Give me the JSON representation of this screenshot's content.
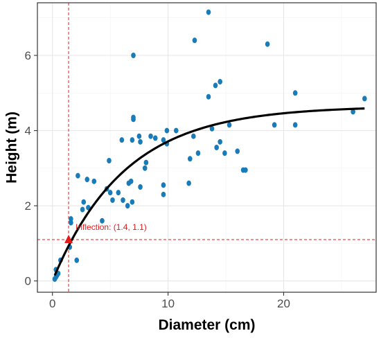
{
  "chart_data": {
    "type": "scatter",
    "xlabel": "Diameter (cm)",
    "ylabel": "Height (m)",
    "xlim": [
      -1.3,
      28.0
    ],
    "ylim": [
      -0.3,
      7.4
    ],
    "x_ticks": [
      0,
      10,
      20
    ],
    "y_ticks": [
      0,
      2,
      4,
      6
    ],
    "grid": true,
    "legend": "none",
    "colors": {
      "points": "#1a7bb9",
      "fit_line": "#000000",
      "inflection": "#e41a1c",
      "grid_major": "#e6e6e6",
      "grid_minor": "#f2f2f2"
    },
    "points": [
      {
        "x": 0.2,
        "y": 0.05
      },
      {
        "x": 0.3,
        "y": 0.1
      },
      {
        "x": 0.4,
        "y": 0.15
      },
      {
        "x": 0.3,
        "y": 0.3
      },
      {
        "x": 0.5,
        "y": 0.2
      },
      {
        "x": 0.7,
        "y": 0.55
      },
      {
        "x": 1.5,
        "y": 0.9
      },
      {
        "x": 1.6,
        "y": 1.55
      },
      {
        "x": 1.6,
        "y": 1.65
      },
      {
        "x": 2.1,
        "y": 0.55
      },
      {
        "x": 2.2,
        "y": 2.8
      },
      {
        "x": 2.6,
        "y": 1.9
      },
      {
        "x": 2.7,
        "y": 2.1
      },
      {
        "x": 3.0,
        "y": 2.7
      },
      {
        "x": 3.1,
        "y": 1.95
      },
      {
        "x": 3.6,
        "y": 2.65
      },
      {
        "x": 4.3,
        "y": 1.6
      },
      {
        "x": 4.7,
        "y": 2.45
      },
      {
        "x": 4.9,
        "y": 3.2
      },
      {
        "x": 5.0,
        "y": 2.35
      },
      {
        "x": 5.2,
        "y": 2.15
      },
      {
        "x": 5.7,
        "y": 2.35
      },
      {
        "x": 6.0,
        "y": 3.75
      },
      {
        "x": 6.1,
        "y": 2.15
      },
      {
        "x": 6.5,
        "y": 2.0
      },
      {
        "x": 6.6,
        "y": 2.6
      },
      {
        "x": 6.8,
        "y": 2.65
      },
      {
        "x": 6.9,
        "y": 3.75
      },
      {
        "x": 6.9,
        "y": 2.1
      },
      {
        "x": 7.0,
        "y": 4.3
      },
      {
        "x": 7.0,
        "y": 4.35
      },
      {
        "x": 7.0,
        "y": 6.0
      },
      {
        "x": 7.5,
        "y": 3.85
      },
      {
        "x": 7.6,
        "y": 2.5
      },
      {
        "x": 7.6,
        "y": 3.7
      },
      {
        "x": 8.0,
        "y": 3.0
      },
      {
        "x": 8.1,
        "y": 3.15
      },
      {
        "x": 8.5,
        "y": 3.85
      },
      {
        "x": 8.9,
        "y": 3.8
      },
      {
        "x": 9.6,
        "y": 3.75
      },
      {
        "x": 9.6,
        "y": 2.3
      },
      {
        "x": 9.6,
        "y": 2.55
      },
      {
        "x": 9.9,
        "y": 3.65
      },
      {
        "x": 9.9,
        "y": 4.0
      },
      {
        "x": 10.7,
        "y": 4.0
      },
      {
        "x": 11.8,
        "y": 2.6
      },
      {
        "x": 11.9,
        "y": 3.25
      },
      {
        "x": 12.2,
        "y": 3.85
      },
      {
        "x": 12.3,
        "y": 6.4
      },
      {
        "x": 12.6,
        "y": 3.4
      },
      {
        "x": 13.5,
        "y": 7.15
      },
      {
        "x": 13.5,
        "y": 4.9
      },
      {
        "x": 13.8,
        "y": 4.05
      },
      {
        "x": 14.1,
        "y": 5.2
      },
      {
        "x": 14.2,
        "y": 3.55
      },
      {
        "x": 14.5,
        "y": 5.3
      },
      {
        "x": 14.5,
        "y": 3.7
      },
      {
        "x": 14.9,
        "y": 3.4
      },
      {
        "x": 15.3,
        "y": 4.15
      },
      {
        "x": 16.0,
        "y": 3.45
      },
      {
        "x": 16.5,
        "y": 2.95
      },
      {
        "x": 16.7,
        "y": 2.95
      },
      {
        "x": 18.6,
        "y": 6.3
      },
      {
        "x": 19.2,
        "y": 4.15
      },
      {
        "x": 21.0,
        "y": 5.0
      },
      {
        "x": 21.0,
        "y": 4.15
      },
      {
        "x": 26.0,
        "y": 4.5
      },
      {
        "x": 27.0,
        "y": 4.85
      }
    ],
    "fit_curve": {
      "type": "asymptotic",
      "asymptote": 4.65,
      "rate": 0.16,
      "x_range": [
        0.2,
        27.0
      ]
    },
    "inflection": {
      "x": 1.4,
      "y": 1.1,
      "label": "Inflection: (1.4, 1.1)"
    }
  }
}
